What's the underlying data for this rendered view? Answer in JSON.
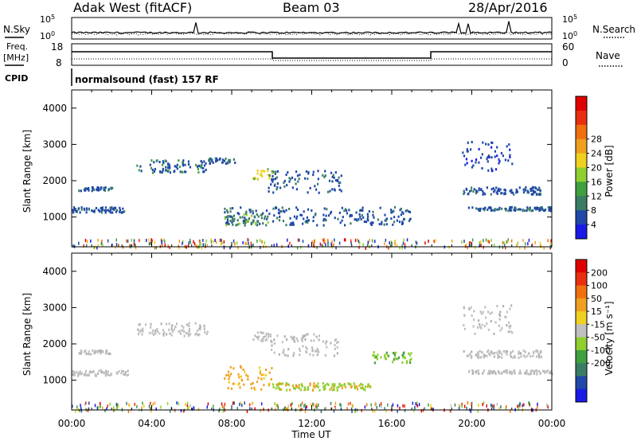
{
  "header": {
    "station": "Adak West (fitACF)",
    "beam": "Beam 03",
    "date": "28/Apr/2016"
  },
  "top_panels": {
    "nsky": {
      "label": "N.Sky",
      "y_ticks": [
        "10^5",
        "10^0"
      ],
      "right_label": "N.Search",
      "right_ticks": [
        "10^5",
        "10^0"
      ]
    },
    "freq": {
      "label_line1": "Freq.",
      "label_line2": "[MHz]",
      "y_ticks": [
        "18",
        "8"
      ],
      "right_label": "Nave",
      "right_ticks": [
        "60",
        "0"
      ]
    },
    "cpid": {
      "label": "CPID",
      "value": "normalsound (fast) 157 RF"
    }
  },
  "chart_data": [
    {
      "type": "heatmap",
      "panel": "power",
      "xlabel": "",
      "ylabel": "Slant Range [km]",
      "x_ticks": [
        "00:00",
        "04:00",
        "08:00",
        "12:00",
        "16:00",
        "20:00",
        "00:00"
      ],
      "x_range_hours": [
        0,
        24
      ],
      "y_ticks": [
        "1000",
        "2000",
        "3000",
        "4000"
      ],
      "ylim_km": [
        180,
        4500
      ],
      "colorbar_label": "Power [dB]",
      "colorbar_ticks": [
        "4",
        "8",
        "12",
        "16",
        "20",
        "24",
        "28"
      ],
      "colorbar_colors": [
        "#1a1ae6",
        "#1f48a8",
        "#3a7d64",
        "#3fa03f",
        "#8fcf30",
        "#f0d020",
        "#f0a020",
        "#f07010",
        "#e83010",
        "#e00000"
      ],
      "colorbar_range": [
        0,
        32
      ],
      "legend": "right",
      "echo_bands": [
        {
          "t0": 0.0,
          "t1": 2.8,
          "r0": 1150,
          "r1": 1300,
          "color": "#1f48a8",
          "alt": "#3a7d64"
        },
        {
          "t0": 0.3,
          "t1": 2.0,
          "r0": 1750,
          "r1": 1850,
          "color": "#1f48a8",
          "alt": "#3a7d64"
        },
        {
          "t0": 3.2,
          "t1": 6.8,
          "r0": 2250,
          "r1": 2600,
          "color": "#1f48a8",
          "alt": "#3fa03f"
        },
        {
          "t0": 6.8,
          "t1": 8.2,
          "r0": 2500,
          "r1": 2650,
          "color": "#1f48a8",
          "alt": "#3a7d64"
        },
        {
          "t0": 7.6,
          "t1": 17.0,
          "r0": 800,
          "r1": 1300,
          "color": "#1f48a8",
          "alt": "#3a7d64"
        },
        {
          "t0": 7.6,
          "t1": 9.8,
          "r0": 800,
          "r1": 1100,
          "color": "#3a7d64",
          "alt": "#8fcf30"
        },
        {
          "t0": 9.0,
          "t1": 10.0,
          "r0": 2050,
          "r1": 2350,
          "color": "#f0d020",
          "alt": "#3fa03f"
        },
        {
          "t0": 9.8,
          "t1": 13.5,
          "r0": 1700,
          "r1": 2300,
          "color": "#1f48a8",
          "alt": "#3a7d64"
        },
        {
          "t0": 19.8,
          "t1": 24.0,
          "r0": 1200,
          "r1": 1300,
          "color": "#1f48a8",
          "alt": "#3a7d64"
        },
        {
          "t0": 19.5,
          "t1": 23.5,
          "r0": 1650,
          "r1": 1850,
          "color": "#1f48a8",
          "alt": "#3a7d64"
        },
        {
          "t0": 19.5,
          "t1": 22.0,
          "r0": 2300,
          "r1": 3100,
          "color": "#1f48a8",
          "alt": "#1a1ae6"
        }
      ],
      "ground_scatter_band": {
        "r0": 180,
        "r1": 420
      }
    },
    {
      "type": "heatmap",
      "panel": "velocity",
      "xlabel": "Time UT",
      "ylabel": "Slant Range [km]",
      "x_ticks": [
        "00:00",
        "04:00",
        "08:00",
        "12:00",
        "16:00",
        "20:00",
        "00:00"
      ],
      "x_range_hours": [
        0,
        24
      ],
      "y_ticks": [
        "1000",
        "2000",
        "3000",
        "4000"
      ],
      "ylim_km": [
        180,
        4500
      ],
      "colorbar_label": "Velocity [m s⁻¹]",
      "colorbar_ticks": [
        "200",
        "100",
        "50",
        "15",
        "-15",
        "-50",
        "-100",
        "-200"
      ],
      "colorbar_colors": [
        "#1a1ae6",
        "#1f48a8",
        "#3a7d64",
        "#3fa03f",
        "#8fcf30",
        "#c0c0c0",
        "#f0d020",
        "#f0a020",
        "#f07010",
        "#e83010",
        "#e00000"
      ],
      "legend": "right",
      "echo_bands": [
        {
          "t0": 0.0,
          "t1": 2.8,
          "r0": 1150,
          "r1": 1300,
          "color": "#c0c0c0",
          "alt": "#b0b0b0"
        },
        {
          "t0": 0.3,
          "t1": 2.0,
          "r0": 1750,
          "r1": 1850,
          "color": "#c0c0c0",
          "alt": "#b0b0b0"
        },
        {
          "t0": 3.2,
          "t1": 6.8,
          "r0": 2250,
          "r1": 2600,
          "color": "#c0c0c0",
          "alt": "#b0b0b0"
        },
        {
          "t0": 7.6,
          "t1": 10.0,
          "r0": 750,
          "r1": 1450,
          "color": "#f0a020",
          "alt": "#f0d020"
        },
        {
          "t0": 10.0,
          "t1": 15.0,
          "r0": 750,
          "r1": 950,
          "color": "#8fcf30",
          "alt": "#f0a020"
        },
        {
          "t0": 15.0,
          "t1": 17.0,
          "r0": 1500,
          "r1": 1800,
          "color": "#8fcf30",
          "alt": "#3fa03f"
        },
        {
          "t0": 9.0,
          "t1": 10.0,
          "r0": 2050,
          "r1": 2350,
          "color": "#c0c0c0",
          "alt": "#b0b0b0"
        },
        {
          "t0": 9.8,
          "t1": 13.5,
          "r0": 1700,
          "r1": 2300,
          "color": "#c0c0c0",
          "alt": "#b0b0b0"
        },
        {
          "t0": 19.8,
          "t1": 24.0,
          "r0": 1200,
          "r1": 1300,
          "color": "#c0c0c0",
          "alt": "#b0b0b0"
        },
        {
          "t0": 19.5,
          "t1": 23.5,
          "r0": 1650,
          "r1": 1850,
          "color": "#c0c0c0",
          "alt": "#b0b0b0"
        },
        {
          "t0": 19.5,
          "t1": 22.0,
          "r0": 2300,
          "r1": 3100,
          "color": "#c0c0c0",
          "alt": "#b0b0b0"
        }
      ],
      "ground_scatter_band": {
        "r0": 180,
        "r1": 420
      }
    }
  ]
}
